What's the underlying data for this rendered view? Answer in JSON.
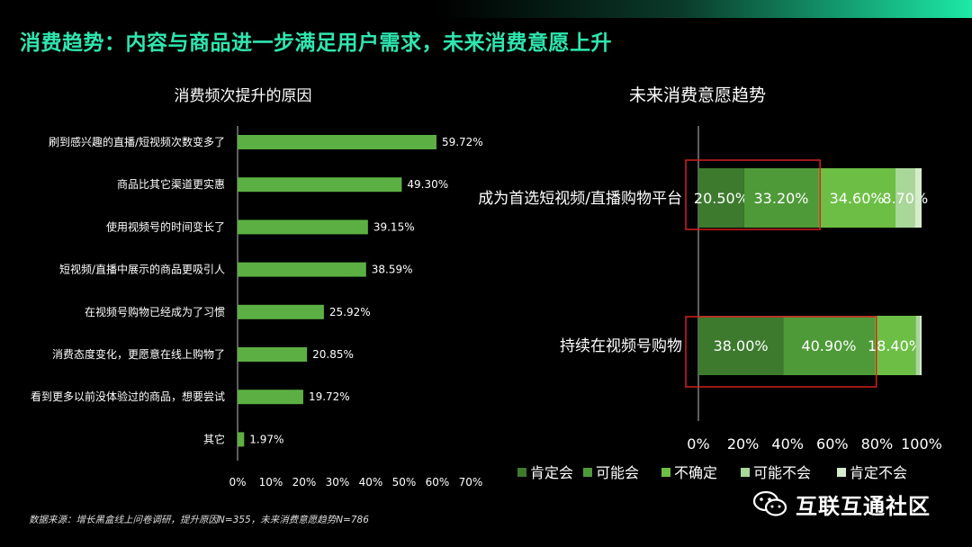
{
  "page": {
    "title": "消费趋势：内容与商品进一步满足用户需求，未来消费意愿上升",
    "source": "数据来源：增长黑盒线上问卷调研，提升原因N=355，未来消费意愿趋势N=786",
    "watermark": "互联互通社区"
  },
  "colors": {
    "accent": "#2ee6b0",
    "bar": "#5cb043",
    "s1": "#3d7a2e",
    "s2": "#4e9a38",
    "s3": "#6cbf44",
    "s4": "#a9d699",
    "s5": "#d4ecc9",
    "highlight": "#d42020"
  },
  "chart_data": [
    {
      "type": "bar",
      "orientation": "horizontal",
      "title": "消费频次提升的原因",
      "categories": [
        "刷到感兴趣的直播/短视频次数变多了",
        "商品比其它渠道更实惠",
        "使用视频号的时间变长了",
        "短视频/直播中展示的商品更吸引人",
        "在视频号购物已经成为了习惯",
        "消费态度变化，更愿意在线上购物了",
        "看到更多以前没体验过的商品，想要尝试",
        "其它"
      ],
      "values": [
        59.72,
        49.3,
        39.15,
        38.59,
        25.92,
        20.85,
        19.72,
        1.97
      ],
      "value_labels": [
        "59.72%",
        "49.30%",
        "39.15%",
        "38.59%",
        "25.92%",
        "20.85%",
        "19.72%",
        "1.97%"
      ],
      "xlim": [
        0,
        70
      ],
      "xticks": [
        "0%",
        "10%",
        "20%",
        "30%",
        "40%",
        "50%",
        "60%",
        "70%"
      ]
    },
    {
      "type": "bar",
      "orientation": "horizontal",
      "stacked": true,
      "title": "未来消费意愿趋势",
      "categories": [
        "成为首选短视频/直播购物平台",
        "持续在视频号购物"
      ],
      "series": [
        {
          "name": "肯定会",
          "values": [
            20.5,
            38.0
          ],
          "labels": [
            "20.50%",
            "38.00%"
          ]
        },
        {
          "name": "可能会",
          "values": [
            33.2,
            40.9
          ],
          "labels": [
            "33.20%",
            "40.90%"
          ]
        },
        {
          "name": "不确定",
          "values": [
            34.6,
            18.4
          ],
          "labels": [
            "34.60%",
            "18.40%"
          ]
        },
        {
          "name": "可能不会",
          "values": [
            8.7,
            1.9
          ],
          "labels": [
            "8.70%",
            ""
          ]
        },
        {
          "name": "肯定不会",
          "values": [
            3.0,
            0.8
          ],
          "labels": [
            "",
            ""
          ]
        }
      ],
      "xlim": [
        0,
        100
      ],
      "xticks": [
        "0%",
        "20%",
        "40%",
        "60%",
        "80%",
        "100%"
      ],
      "legend": "bottom"
    }
  ]
}
